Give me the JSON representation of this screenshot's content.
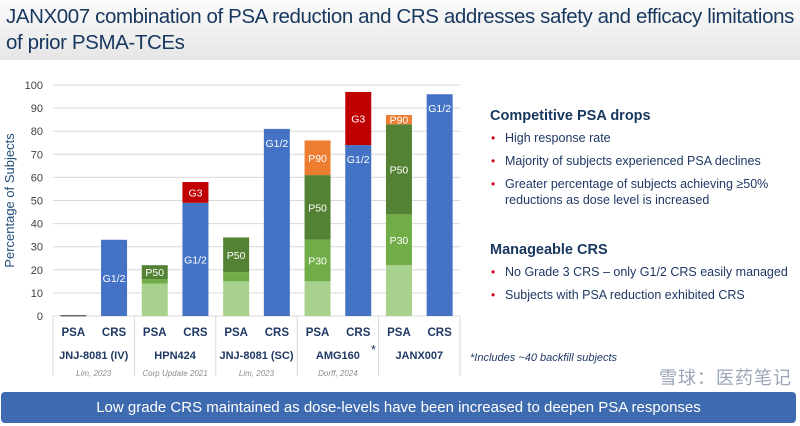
{
  "header": {
    "title": "JANX007 combination of PSA reduction and CRS addresses safety and efficacy limitations of prior PSMA-TCEs"
  },
  "chart_data": {
    "type": "bar",
    "stacked": true,
    "ylabel": "Percentage of Subjects",
    "ylim": [
      0,
      100
    ],
    "yticks": [
      0,
      10,
      20,
      30,
      40,
      50,
      60,
      70,
      80,
      90,
      100
    ],
    "grid": true,
    "groups": [
      {
        "name": "JNJ-8081 (IV)",
        "citation": "Lim, 2023",
        "psa": {
          "label": "PSA",
          "segments": [
            {
              "label": "",
              "value": 0.3,
              "color": "#222222"
            }
          ]
        },
        "crs": {
          "label": "CRS",
          "segments": [
            {
              "label": "G1/2",
              "value": 33,
              "color": "#4472c4"
            }
          ]
        }
      },
      {
        "name": "HPN424",
        "citation": "Corp Update 2021",
        "psa": {
          "label": "PSA",
          "segments": [
            {
              "label": "",
              "value": 14,
              "color": "#a9d18e"
            },
            {
              "label": "",
              "value": 2,
              "color": "#70ad47"
            },
            {
              "label": "P50",
              "value": 6,
              "color": "#548235"
            }
          ]
        },
        "crs": {
          "label": "CRS",
          "segments": [
            {
              "label": "G1/2",
              "value": 49,
              "color": "#4472c4"
            },
            {
              "label": "G3",
              "value": 9,
              "color": "#c00000"
            }
          ]
        }
      },
      {
        "name": "JNJ-8081 (SC)",
        "citation": "Lim, 2023",
        "psa": {
          "label": "PSA",
          "segments": [
            {
              "label": "",
              "value": 15,
              "color": "#a9d18e"
            },
            {
              "label": "",
              "value": 4,
              "color": "#70ad47"
            },
            {
              "label": "P50",
              "value": 15,
              "color": "#548235"
            }
          ]
        },
        "crs": {
          "label": "CRS",
          "segments": [
            {
              "label": "G1/2",
              "value": 81,
              "color": "#4472c4"
            }
          ]
        }
      },
      {
        "name": "AMG160",
        "citation": "Dorff, 2024",
        "marker": "*",
        "psa": {
          "label": "PSA",
          "segments": [
            {
              "label": "",
              "value": 15,
              "color": "#a9d18e"
            },
            {
              "label": "P30",
              "value": 18,
              "color": "#70ad47"
            },
            {
              "label": "P50",
              "value": 28,
              "color": "#548235"
            },
            {
              "label": "P90",
              "value": 15,
              "color": "#ed7d31"
            }
          ]
        },
        "crs": {
          "label": "CRS",
          "segments": [
            {
              "label": "G1/2",
              "value": 74,
              "color": "#4472c4"
            },
            {
              "label": "G3",
              "value": 23,
              "color": "#c00000"
            }
          ]
        }
      },
      {
        "name": "JANX007",
        "citation": "",
        "psa": {
          "label": "PSA",
          "segments": [
            {
              "label": "",
              "value": 22,
              "color": "#a9d18e"
            },
            {
              "label": "P30",
              "value": 22,
              "color": "#70ad47"
            },
            {
              "label": "P50",
              "value": 39,
              "color": "#548235"
            },
            {
              "label": "P90",
              "value": 4,
              "color": "#ed7d31"
            }
          ]
        },
        "crs": {
          "label": "CRS",
          "segments": [
            {
              "label": "G1/2",
              "value": 96,
              "color": "#4472c4"
            }
          ]
        }
      }
    ]
  },
  "panel": {
    "sections": [
      {
        "heading": "Competitive PSA drops",
        "bullets": [
          "High response rate",
          "Majority of subjects experienced PSA declines",
          "Greater percentage of subjects achieving ≥50% reductions as dose level is increased"
        ]
      },
      {
        "heading": "Manageable CRS",
        "bullets": [
          "No Grade 3 CRS – only G1/2 CRS easily managed",
          "Subjects with PSA reduction exhibited CRS"
        ]
      }
    ],
    "footnote": "*Includes ~40 backfill subjects"
  },
  "banner": {
    "text": "Low grade CRS maintained as dose-levels have been increased to deepen PSA responses"
  },
  "watermark": "雪球：医药笔记"
}
